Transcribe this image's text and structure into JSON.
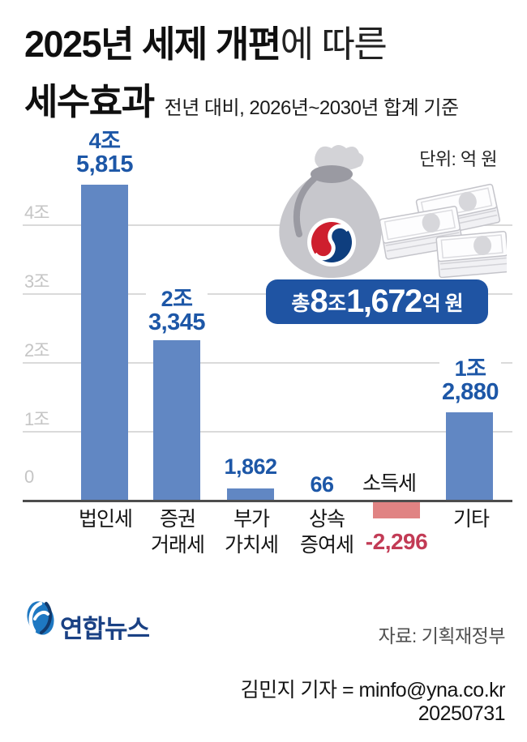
{
  "title": {
    "line1_emphasis": "2025년 세제 개편",
    "line1_rest": "에 따른",
    "line2_emphasis": "세수효과",
    "subtitle": "전년 대비, 2026년~2030년 합계 기준"
  },
  "unit_note": "단위: 억 원",
  "total_badge": {
    "prefix": "총",
    "amount_jo": "8",
    "jo_suffix": "조",
    "amount_eok": "1,672",
    "suffix": "억 원"
  },
  "chart_data": {
    "type": "bar",
    "title": "2025년 세제 개편에 따른 세수효과",
    "subtitle": "전년 대비, 2026년~2030년 합계 기준",
    "unit": "억 원",
    "categories": [
      "법인세",
      "증권거래세",
      "부가가치세",
      "상속증여세",
      "소득세",
      "기타"
    ],
    "values": [
      45815,
      23345,
      1862,
      66,
      -2296,
      12880
    ],
    "total_label": "총 8조 1,672억 원",
    "total_value": 81672,
    "y_axis": {
      "ticks": [
        "4조",
        "3조",
        "2조",
        "1조",
        "0"
      ],
      "tick_values": [
        40000,
        30000,
        20000,
        10000,
        0
      ],
      "ylim": [
        -3000,
        50000
      ]
    },
    "grid": true,
    "legend": "none",
    "bar_color": "#6187c3",
    "negative_bar_color": "#e08383",
    "value_label_color": "#1d57a7",
    "negative_value_color": "#c23b55",
    "bars": [
      {
        "category_line1": "법인세",
        "category_line2": "",
        "value_line1": "4조",
        "value_line2": "5,815"
      },
      {
        "category_line1": "증권",
        "category_line2": "거래세",
        "value_line1": "2조",
        "value_line2": "3,345"
      },
      {
        "category_line1": "부가",
        "category_line2": "가치세",
        "value_line1": "",
        "value_line2": "1,862"
      },
      {
        "category_line1": "상속",
        "category_line2": "증여세",
        "value_line1": "",
        "value_line2": "66"
      },
      {
        "category_line1": "소득세",
        "category_line2": "",
        "value_line1": "",
        "value_line2": "-2,296"
      },
      {
        "category_line1": "기타",
        "category_line2": "",
        "value_line1": "1조",
        "value_line2": "2,880"
      }
    ]
  },
  "footer": {
    "logo_text": "연합뉴스",
    "source": "자료: 기획재정부",
    "byline": "김민지 기자 = minfo@yna.co.kr",
    "date": "20250731"
  }
}
